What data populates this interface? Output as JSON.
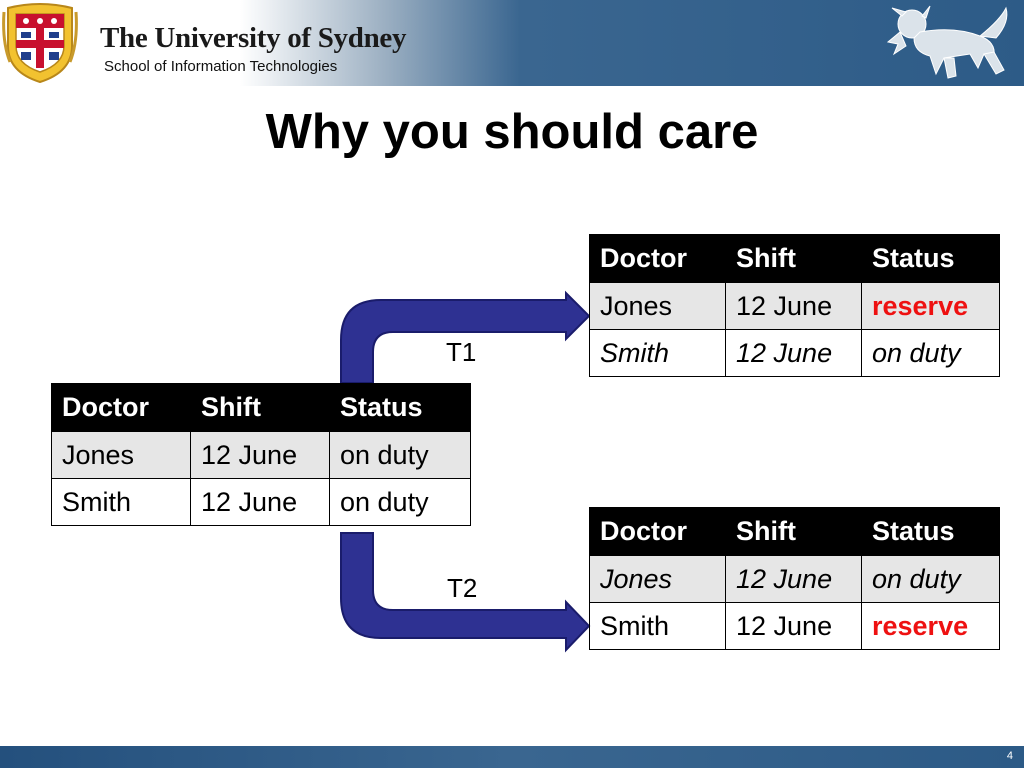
{
  "header": {
    "university_name": "The University of Sydney",
    "school_name": "School of Information Technologies",
    "crest_icon": "university-crest-icon",
    "lion_icon": "heraldic-lion-icon"
  },
  "slide": {
    "title": "Why you should care",
    "page_number": "4"
  },
  "colors": {
    "header_blue": "#2d5b87",
    "arrow_fill": "#2e3192",
    "arrow_stroke": "#1a1c6b",
    "highlight_red": "#ee1111",
    "table_header_bg": "#000000",
    "row_shade": "#e6e6e6"
  },
  "transactions": {
    "t1_label": "T1",
    "t2_label": "T2"
  },
  "tables": {
    "original": {
      "headers": [
        "Doctor",
        "Shift",
        "Status"
      ],
      "rows": [
        [
          "Jones",
          "12 June",
          "on duty"
        ],
        [
          "Smith",
          "12 June",
          "on duty"
        ]
      ]
    },
    "after_t1": {
      "headers": [
        "Doctor",
        "Shift",
        "Status"
      ],
      "rows": [
        [
          "Jones",
          "12 June",
          "reserve"
        ],
        [
          "Smith",
          "12 June",
          "on duty"
        ]
      ]
    },
    "after_t2": {
      "headers": [
        "Doctor",
        "Shift",
        "Status"
      ],
      "rows": [
        [
          "Jones",
          "12 June",
          "on duty"
        ],
        [
          "Smith",
          "12 June",
          "reserve"
        ]
      ]
    }
  }
}
